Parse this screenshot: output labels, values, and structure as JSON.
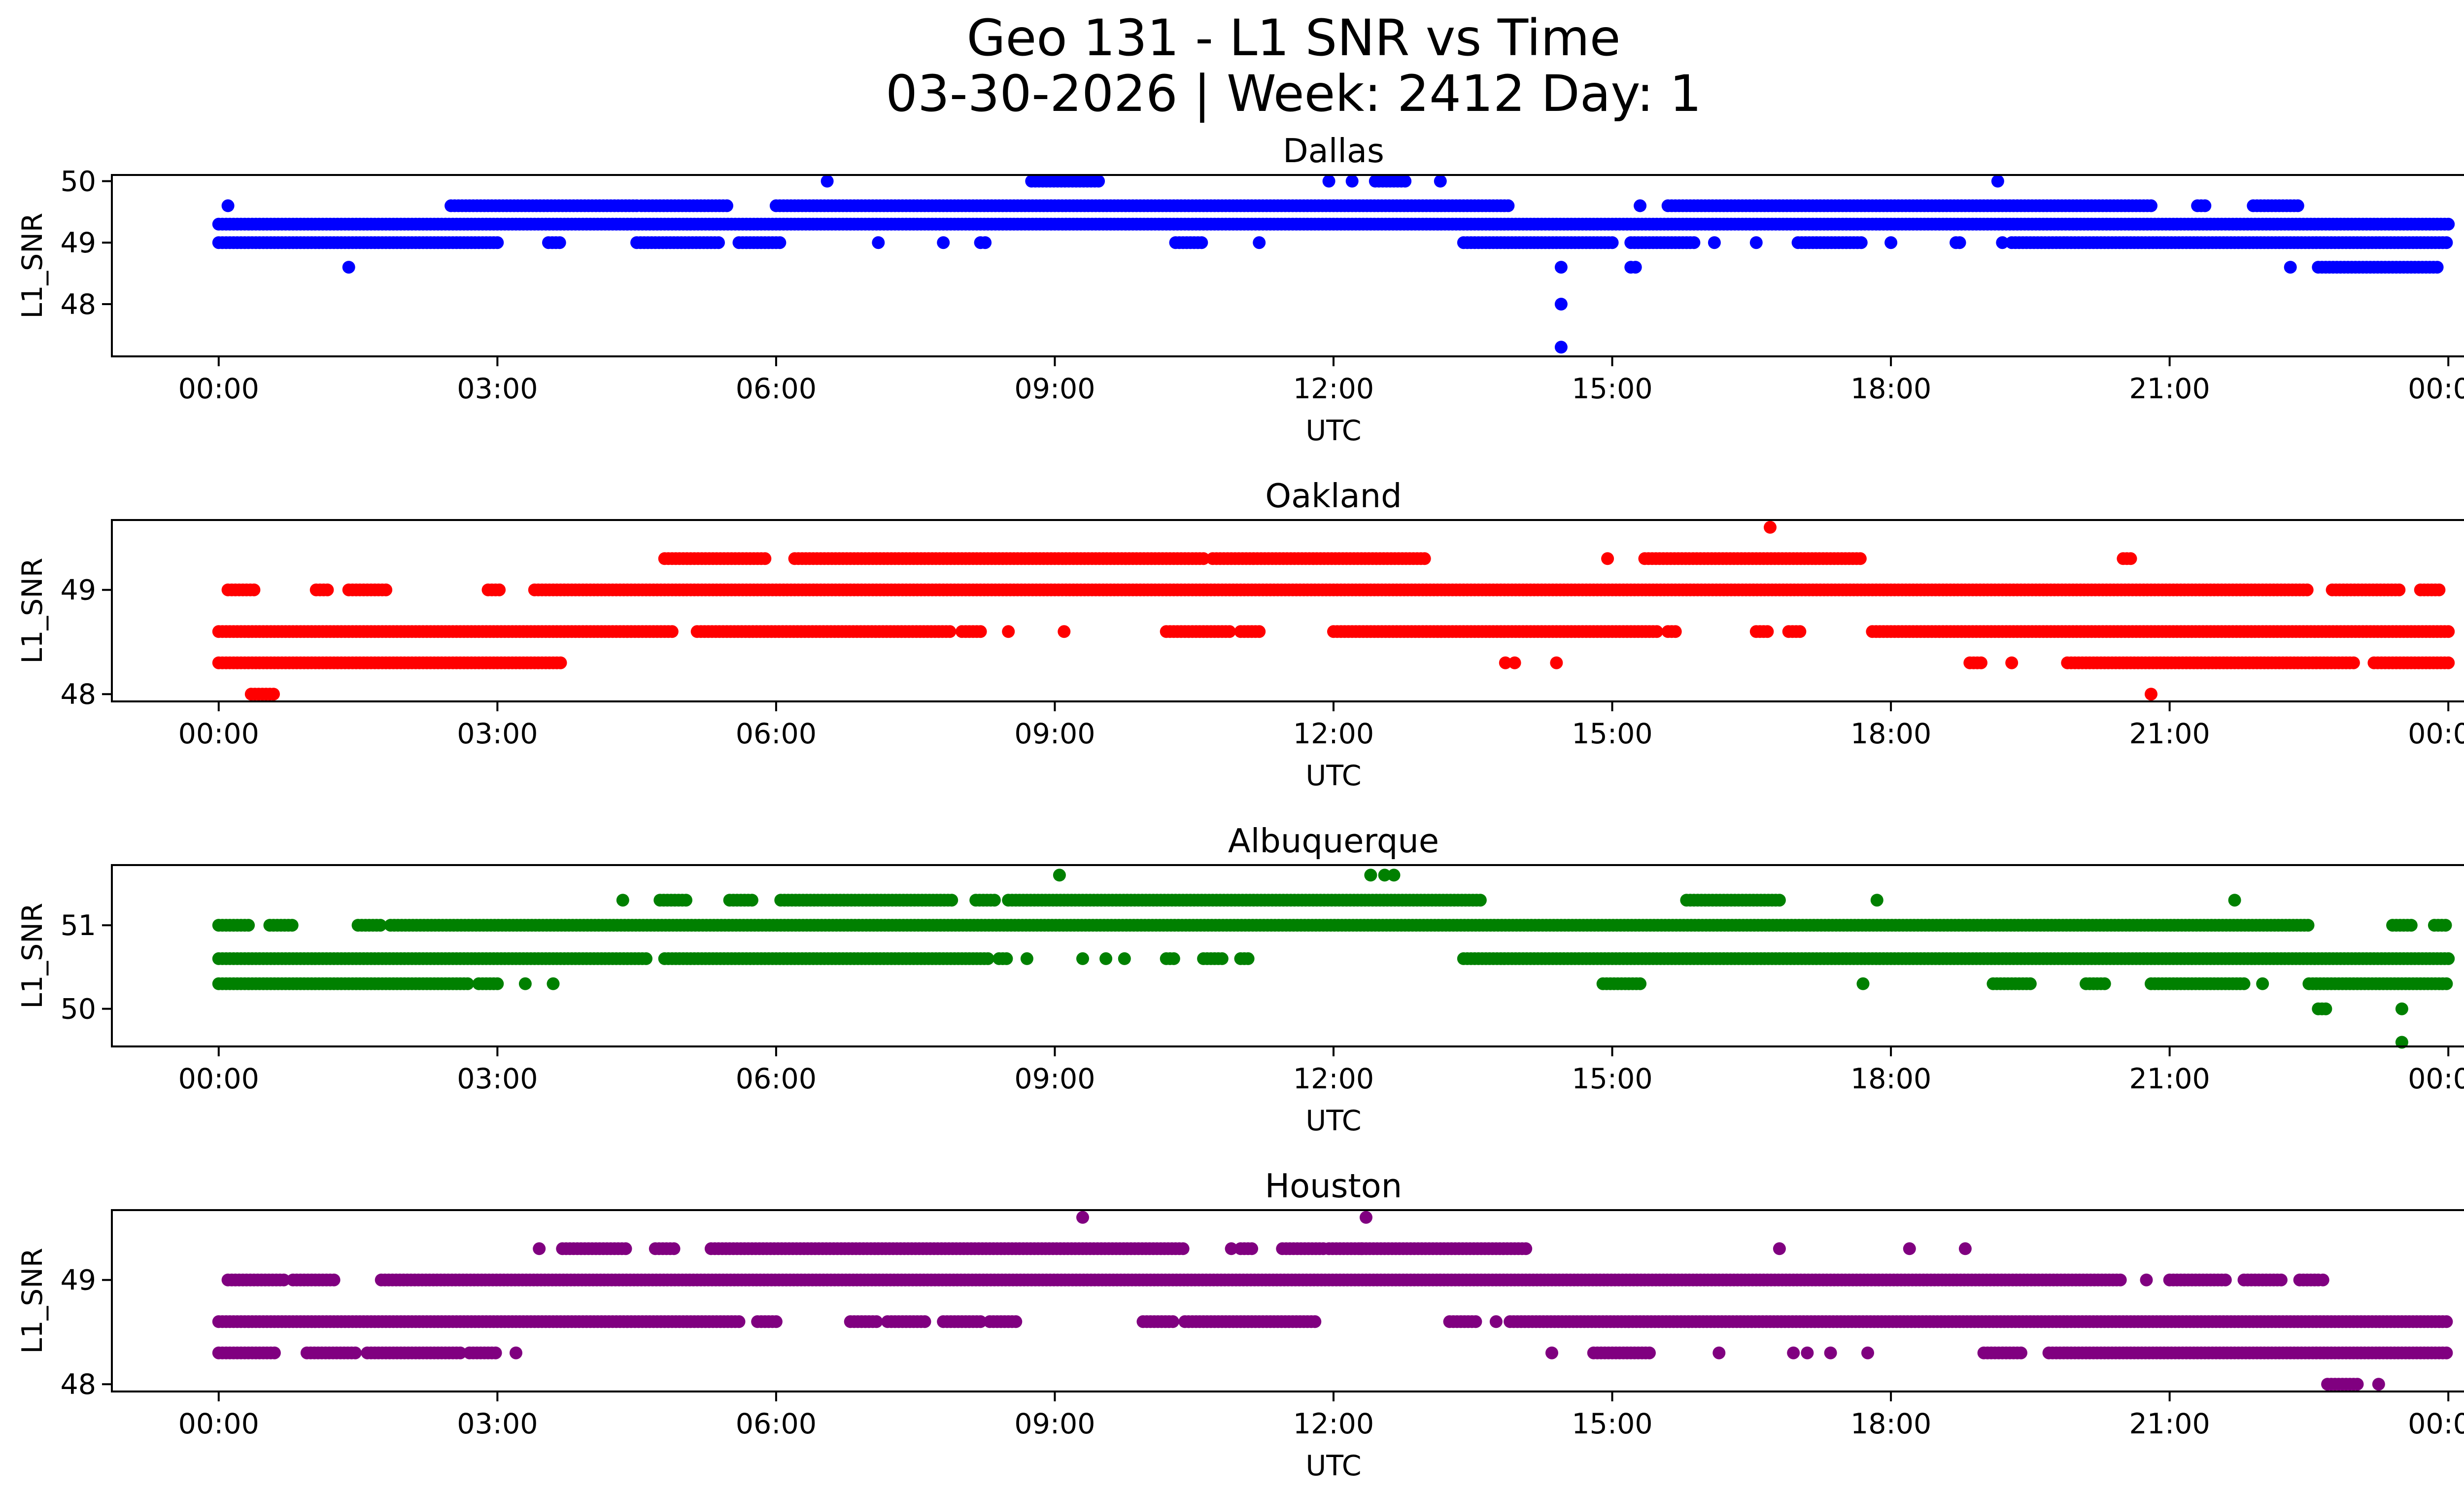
{
  "figure": {
    "title_line1": "Geo 131 - L1 SNR vs Time",
    "title_line2": "03-30-2026 | Week: 2412 Day: 1"
  },
  "chart_data": [
    {
      "type": "scatter",
      "title": "Dallas",
      "xlabel": "UTC",
      "ylabel": "L1_SNR",
      "color": "#0000ff",
      "x_unit": "hours UTC",
      "xlim": [
        -1.15,
        25.15
      ],
      "ylim": [
        47.15,
        50.1
      ],
      "x_ticks": [
        0,
        3,
        6,
        9,
        12,
        15,
        18,
        21,
        24
      ],
      "x_tick_labels": [
        "00:00",
        "03:00",
        "06:00",
        "09:00",
        "12:00",
        "15:00",
        "18:00",
        "21:00",
        "00:00"
      ],
      "y_ticks": [
        48,
        49,
        50
      ],
      "y_tick_labels": [
        "48",
        "49",
        "50"
      ],
      "bands": [
        {
          "y": 49.3,
          "ranges": [
            [
              0.0,
              24.0
            ]
          ]
        },
        {
          "y": 49.0,
          "ranges": [
            [
              0.0,
              3.0
            ],
            [
              3.55,
              3.7
            ],
            [
              4.5,
              5.4
            ],
            [
              5.6,
              6.05
            ],
            [
              10.3,
              10.6
            ],
            [
              13.4,
              15.0
            ],
            [
              15.2,
              15.9
            ],
            [
              17.0,
              17.7
            ],
            [
              18.7,
              18.75
            ],
            [
              19.3,
              24.0
            ]
          ]
        },
        {
          "y": 49.6,
          "ranges": [
            [
              2.5,
              4.5
            ],
            [
              4.55,
              5.5
            ],
            [
              6.0,
              13.9
            ],
            [
              15.6,
              20.8
            ],
            [
              21.3,
              21.4
            ],
            [
              21.9,
              22.4
            ]
          ]
        },
        {
          "y": 48.6,
          "ranges": [
            [
              22.6,
              23.9
            ]
          ]
        },
        {
          "y": 50.0,
          "ranges": [
            [
              8.75,
              9.5
            ],
            [
              12.45,
              12.8
            ]
          ]
        }
      ],
      "points": [
        [
          0.1,
          49.6
        ],
        [
          1.4,
          48.6
        ],
        [
          6.55,
          50.0
        ],
        [
          7.1,
          49.0
        ],
        [
          7.8,
          49.0
        ],
        [
          8.2,
          49.0
        ],
        [
          8.25,
          49.0
        ],
        [
          11.2,
          49.0
        ],
        [
          11.95,
          50.0
        ],
        [
          12.2,
          50.0
        ],
        [
          13.15,
          50.0
        ],
        [
          14.45,
          48.6
        ],
        [
          14.45,
          48.0
        ],
        [
          14.45,
          47.3
        ],
        [
          15.2,
          48.6
        ],
        [
          15.25,
          48.6
        ],
        [
          15.3,
          49.6
        ],
        [
          16.1,
          49.0
        ],
        [
          16.55,
          49.0
        ],
        [
          18.0,
          49.0
        ],
        [
          19.15,
          50.0
        ],
        [
          19.2,
          49.0
        ],
        [
          22.3,
          48.6
        ]
      ]
    },
    {
      "type": "scatter",
      "title": "Oakland",
      "xlabel": "UTC",
      "ylabel": "L1_SNR",
      "color": "#ff0000",
      "x_unit": "hours UTC",
      "xlim": [
        -1.15,
        25.15
      ],
      "ylim": [
        47.93,
        49.67
      ],
      "x_ticks": [
        0,
        3,
        6,
        9,
        12,
        15,
        18,
        21,
        24
      ],
      "x_tick_labels": [
        "00:00",
        "03:00",
        "06:00",
        "09:00",
        "12:00",
        "15:00",
        "18:00",
        "21:00",
        "00:00"
      ],
      "y_ticks": [
        48,
        49
      ],
      "y_tick_labels": [
        "48",
        "49"
      ],
      "bands": [
        {
          "y": 48.6,
          "ranges": [
            [
              0.0,
              4.9
            ],
            [
              5.15,
              7.9
            ],
            [
              8.0,
              8.2
            ],
            [
              10.2,
              10.9
            ],
            [
              11.0,
              11.2
            ],
            [
              12.0,
              15.5
            ],
            [
              15.6,
              15.7
            ],
            [
              16.55,
              16.7
            ],
            [
              16.9,
              17.05
            ],
            [
              17.8,
              24.0
            ]
          ]
        },
        {
          "y": 48.3,
          "ranges": [
            [
              0.0,
              3.7
            ],
            [
              18.85,
              19.0
            ],
            [
              19.9,
              23.0
            ],
            [
              23.2,
              24.0
            ]
          ]
        },
        {
          "y": 49.0,
          "ranges": [
            [
              0.1,
              0.4
            ],
            [
              1.05,
              1.2
            ],
            [
              1.4,
              1.8
            ],
            [
              2.9,
              3.05
            ],
            [
              3.4,
              22.5
            ],
            [
              22.75,
              23.5
            ],
            [
              23.7,
              23.9
            ]
          ]
        },
        {
          "y": 49.3,
          "ranges": [
            [
              4.8,
              5.9
            ],
            [
              6.2,
              10.6
            ],
            [
              10.7,
              13.0
            ],
            [
              15.35,
              17.7
            ],
            [
              20.5,
              20.6
            ]
          ]
        },
        {
          "y": 48.0,
          "ranges": [
            [
              0.35,
              0.6
            ]
          ]
        }
      ],
      "points": [
        [
          8.5,
          48.6
        ],
        [
          9.1,
          48.6
        ],
        [
          13.85,
          48.3
        ],
        [
          13.95,
          48.3
        ],
        [
          14.4,
          48.3
        ],
        [
          14.95,
          49.3
        ],
        [
          16.7,
          49.6
        ],
        [
          19.3,
          48.3
        ],
        [
          20.8,
          48.0
        ]
      ]
    },
    {
      "type": "scatter",
      "title": "Albuquerque",
      "xlabel": "UTC",
      "ylabel": "L1_SNR",
      "color": "#008000",
      "x_unit": "hours UTC",
      "xlim": [
        -1.15,
        25.15
      ],
      "ylim": [
        49.55,
        51.72
      ],
      "x_ticks": [
        0,
        3,
        6,
        9,
        12,
        15,
        18,
        21,
        24
      ],
      "x_tick_labels": [
        "00:00",
        "03:00",
        "06:00",
        "09:00",
        "12:00",
        "15:00",
        "18:00",
        "21:00",
        "00:00"
      ],
      "y_ticks": [
        50,
        51
      ],
      "y_tick_labels": [
        "50",
        "51"
      ],
      "bands": [
        {
          "y": 50.6,
          "ranges": [
            [
              0.0,
              4.6
            ],
            [
              4.8,
              8.3
            ],
            [
              8.4,
              8.5
            ],
            [
              10.2,
              10.3
            ],
            [
              10.6,
              10.8
            ],
            [
              11.0,
              11.1
            ],
            [
              13.4,
              24.0
            ]
          ]
        },
        {
          "y": 50.3,
          "ranges": [
            [
              0.0,
              2.7
            ],
            [
              2.8,
              3.0
            ],
            [
              14.9,
              15.3
            ],
            [
              19.1,
              19.5
            ],
            [
              20.1,
              20.3
            ],
            [
              20.8,
              21.8
            ],
            [
              22.5,
              24.0
            ]
          ]
        },
        {
          "y": 51.0,
          "ranges": [
            [
              0.0,
              0.35
            ],
            [
              0.55,
              0.8
            ],
            [
              1.5,
              1.75
            ],
            [
              1.85,
              22.5
            ],
            [
              23.4,
              23.6
            ],
            [
              23.85,
              24.0
            ]
          ]
        },
        {
          "y": 51.3,
          "ranges": [
            [
              4.75,
              5.05
            ],
            [
              5.5,
              5.75
            ],
            [
              6.05,
              7.9
            ],
            [
              8.15,
              8.35
            ],
            [
              8.5,
              13.6
            ],
            [
              15.8,
              16.8
            ]
          ]
        },
        {
          "y": 50.0,
          "ranges": [
            [
              22.6,
              22.7
            ]
          ]
        }
      ],
      "points": [
        [
          3.3,
          50.3
        ],
        [
          3.6,
          50.3
        ],
        [
          4.35,
          51.3
        ],
        [
          8.7,
          50.6
        ],
        [
          9.05,
          51.6
        ],
        [
          9.3,
          50.6
        ],
        [
          9.55,
          50.6
        ],
        [
          9.75,
          50.6
        ],
        [
          12.4,
          51.6
        ],
        [
          12.55,
          51.6
        ],
        [
          12.65,
          51.6
        ],
        [
          17.7,
          50.3
        ],
        [
          17.85,
          51.3
        ],
        [
          21.7,
          51.3
        ],
        [
          22.0,
          50.3
        ],
        [
          23.5,
          50.0
        ],
        [
          23.5,
          49.6
        ]
      ]
    },
    {
      "type": "scatter",
      "title": "Houston",
      "xlabel": "UTC",
      "ylabel": "L1_SNR",
      "color": "#800080",
      "x_unit": "hours UTC",
      "xlim": [
        -1.15,
        25.15
      ],
      "ylim": [
        47.93,
        49.67
      ],
      "x_ticks": [
        0,
        3,
        6,
        9,
        12,
        15,
        18,
        21,
        24
      ],
      "x_tick_labels": [
        "00:00",
        "03:00",
        "06:00",
        "09:00",
        "12:00",
        "15:00",
        "18:00",
        "21:00",
        "00:00"
      ],
      "y_ticks": [
        48,
        49
      ],
      "y_tick_labels": [
        "48",
        "49"
      ],
      "bands": [
        {
          "y": 48.6,
          "ranges": [
            [
              0.0,
              5.6
            ],
            [
              5.8,
              6.0
            ],
            [
              6.8,
              7.1
            ],
            [
              7.2,
              7.6
            ],
            [
              7.8,
              8.2
            ],
            [
              8.3,
              8.6
            ],
            [
              9.95,
              10.3
            ],
            [
              10.4,
              11.8
            ],
            [
              13.25,
              13.55
            ],
            [
              13.9,
              24.0
            ]
          ]
        },
        {
          "y": 48.3,
          "ranges": [
            [
              0.0,
              0.6
            ],
            [
              0.95,
              1.5
            ],
            [
              1.6,
              2.6
            ],
            [
              2.7,
              3.0
            ],
            [
              14.8,
              15.4
            ],
            [
              19.0,
              19.4
            ],
            [
              19.7,
              24.0
            ]
          ]
        },
        {
          "y": 49.0,
          "ranges": [
            [
              0.1,
              0.7
            ],
            [
              0.8,
              1.25
            ],
            [
              1.75,
              20.5
            ],
            [
              21.0,
              21.6
            ],
            [
              21.8,
              22.2
            ],
            [
              22.4,
              22.6
            ]
          ]
        },
        {
          "y": 49.3,
          "ranges": [
            [
              3.7,
              4.4
            ],
            [
              4.7,
              4.9
            ],
            [
              5.3,
              10.4
            ],
            [
              11.0,
              11.15
            ],
            [
              11.45,
              11.9
            ],
            [
              11.95,
              14.1
            ]
          ]
        },
        {
          "y": 48.0,
          "ranges": [
            [
              22.7,
              23.05
            ]
          ]
        }
      ],
      "points": [
        [
          3.45,
          49.3
        ],
        [
          3.2,
          48.3
        ],
        [
          9.3,
          49.6
        ],
        [
          10.9,
          49.3
        ],
        [
          12.35,
          49.6
        ],
        [
          12.3,
          49.3
        ],
        [
          13.75,
          48.6
        ],
        [
          14.35,
          48.3
        ],
        [
          16.15,
          48.3
        ],
        [
          16.8,
          49.3
        ],
        [
          16.95,
          48.3
        ],
        [
          17.1,
          48.3
        ],
        [
          17.35,
          48.3
        ],
        [
          17.75,
          48.3
        ],
        [
          18.2,
          49.3
        ],
        [
          18.8,
          49.3
        ],
        [
          20.75,
          49.0
        ],
        [
          23.25,
          48.0
        ],
        [
          22.65,
          49.0
        ]
      ]
    }
  ]
}
